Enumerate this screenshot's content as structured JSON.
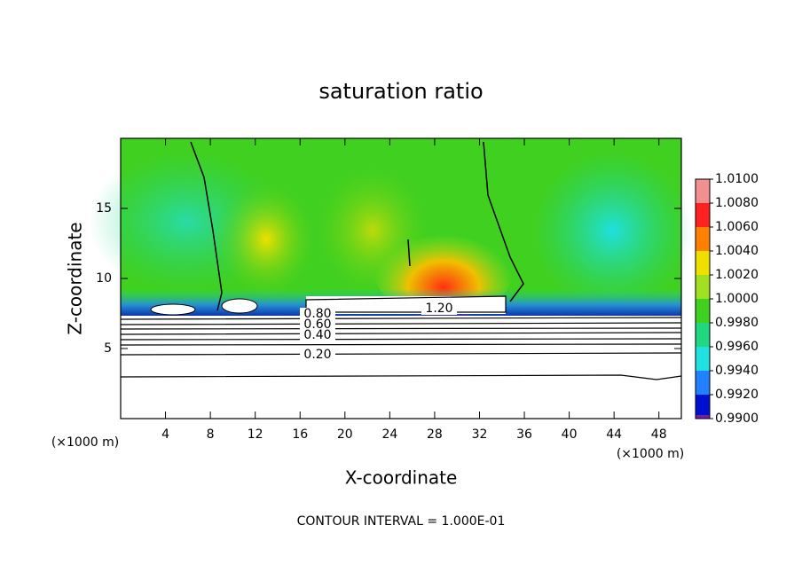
{
  "chart_data": {
    "type": "contour",
    "title": "saturation ratio",
    "x_label": "X-coordinate",
    "y_label": "Z-coordinate",
    "x_unit": "(×1000 m)",
    "y_unit": "(×1000 m)",
    "xlim": [
      0,
      50
    ],
    "xticks": [
      4,
      8,
      12,
      16,
      20,
      24,
      28,
      32,
      36,
      40,
      44,
      48
    ],
    "ylim": [
      0,
      20
    ],
    "yticks": [
      5,
      10,
      15
    ],
    "colorbar": {
      "levels": [
        {
          "value": 1.01,
          "label": "1.0100"
        },
        {
          "value": 1.008,
          "label": "1.0080"
        },
        {
          "value": 1.006,
          "label": "1.0060"
        },
        {
          "value": 1.004,
          "label": "1.0040"
        },
        {
          "value": 1.002,
          "label": "1.0020"
        },
        {
          "value": 1.0,
          "label": "1.0000"
        },
        {
          "value": 0.998,
          "label": "0.9980"
        },
        {
          "value": 0.996,
          "label": "0.9960"
        },
        {
          "value": 0.994,
          "label": "0.9940"
        },
        {
          "value": 0.992,
          "label": "0.9920"
        },
        {
          "value": 0.99,
          "label": "0.9900"
        }
      ],
      "colors": [
        "#f09090",
        "#ff2020",
        "#ff8000",
        "#f0e000",
        "#a0e020",
        "#40d020",
        "#20d880",
        "#20e0e0",
        "#2080ff",
        "#0010d0"
      ],
      "bottom_color": "#7020a0"
    },
    "contour_labels": [
      {
        "value": 1.2,
        "label": "1.20"
      },
      {
        "value": 0.8,
        "label": "0.80"
      },
      {
        "value": 0.6,
        "label": "0.60"
      },
      {
        "value": 0.4,
        "label": "0.40"
      },
      {
        "value": 0.2,
        "label": "0.20"
      }
    ],
    "footer": "CONTOUR INTERVAL = 1.000E-01"
  }
}
